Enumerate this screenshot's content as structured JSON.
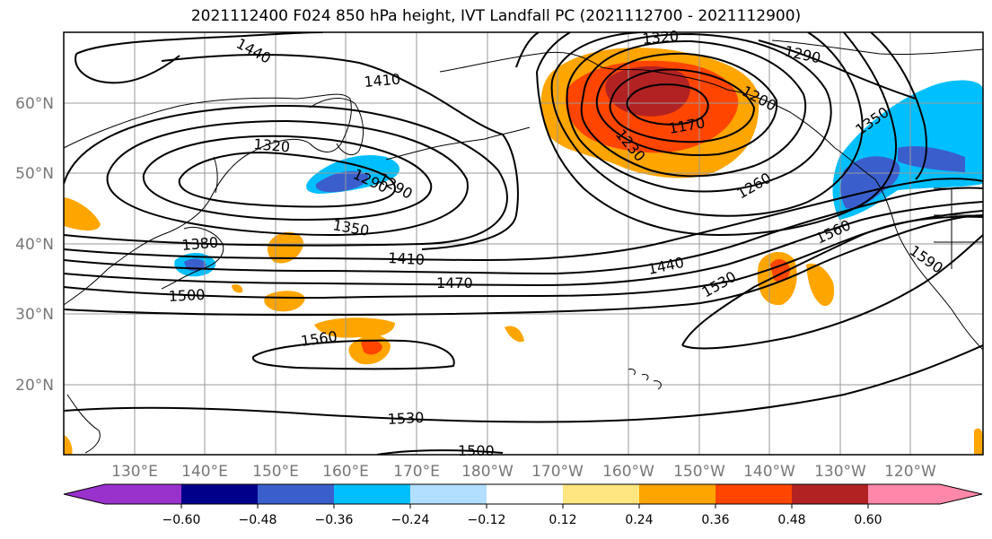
{
  "title": "2021112400 F024 850 hPa height, IVT Landfall PC (2021112700 - 2021112900)",
  "map": {
    "lat_labels": [
      "60°N",
      "50°N",
      "40°N",
      "30°N",
      "20°N"
    ],
    "lon_labels": [
      "130°E",
      "140°E",
      "150°E",
      "160°E",
      "170°E",
      "180°W",
      "170°W",
      "160°W",
      "150°W",
      "140°W",
      "130°W",
      "120°W"
    ],
    "contour_labels": [
      "1440",
      "1410",
      "1320",
      "1290",
      "1290",
      "1200",
      "1170",
      "1230",
      "1260",
      "1350",
      "1320",
      "1290",
      "1350",
      "1380",
      "1410",
      "1470",
      "1500",
      "1440",
      "1530",
      "1560",
      "1590",
      "1560",
      "1530",
      "1500"
    ],
    "grid": true,
    "fill_colors": {
      "purple": "#9932cc",
      "navy": "#00008b",
      "royal": "#3a5fcd",
      "blue": "#00bfff",
      "lightblue": "#b2dfff",
      "yellow": "#ffe680",
      "orange": "#ffa500",
      "redorange": "#ff4500",
      "darkred": "#b22222",
      "pink": "#ff88aa"
    }
  },
  "colorbar": {
    "ticks": [
      "−0.60",
      "−0.48",
      "−0.36",
      "−0.24",
      "−0.12",
      "0.12",
      "0.24",
      "0.36",
      "0.48",
      "0.60"
    ],
    "colors": [
      "#9932cc",
      "#00008b",
      "#3a5fcd",
      "#00bfff",
      "#b2dfff",
      "#ffffff",
      "#ffe680",
      "#ffa500",
      "#ff4500",
      "#b22222",
      "#ff88aa"
    ]
  }
}
